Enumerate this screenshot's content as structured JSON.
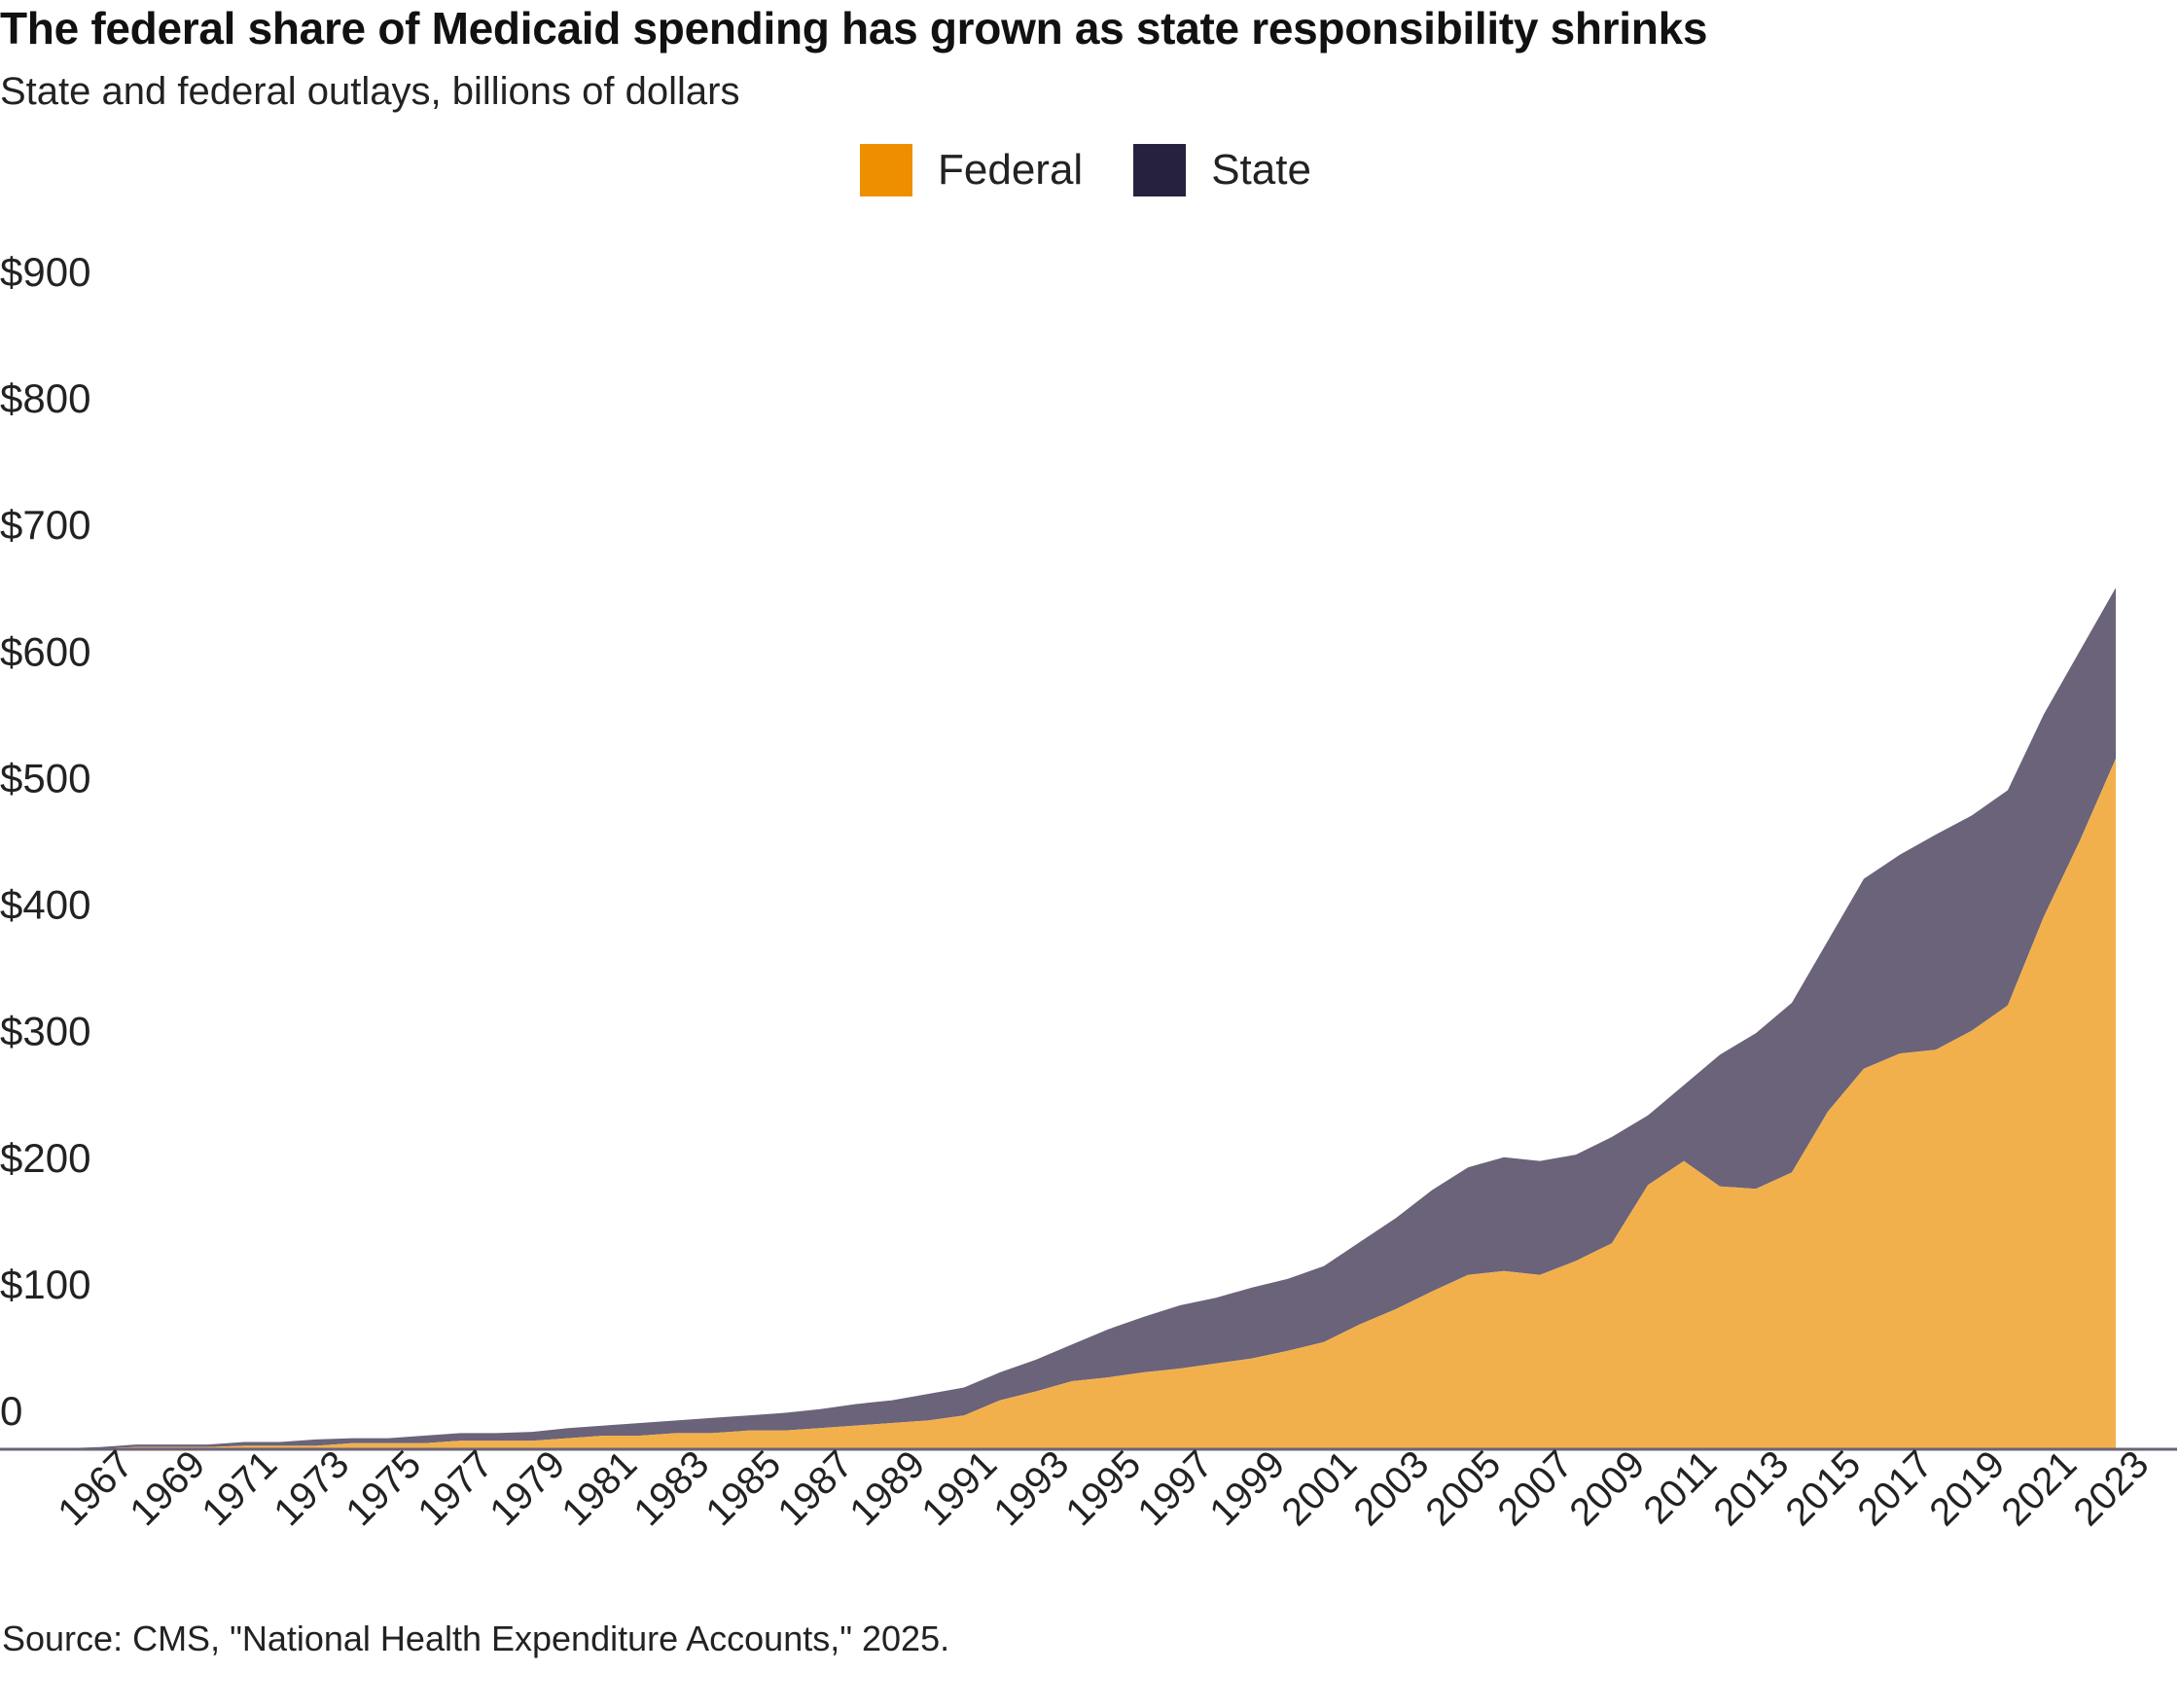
{
  "title": "The federal share of Medicaid spending has grown as state responsibility shrinks",
  "subtitle": "State and federal outlays, billions of dollars",
  "source": "Source: CMS, \"National Health Expenditure Accounts,\" 2025.",
  "colors": {
    "federal_legend": "#EE8F00",
    "state_legend": "#26213C",
    "federal_area": "#F2B04D",
    "state_area": "#6A6379",
    "axis": "#6A6379"
  },
  "legend": [
    {
      "label": "Federal",
      "color": "#EE8F00"
    },
    {
      "label": "State",
      "color": "#26213C"
    }
  ],
  "chart_data": {
    "type": "area",
    "stacked": true,
    "title": "The federal share of Medicaid spending has grown as state responsibility shrinks",
    "subtitle": "State and federal outlays, billions of dollars",
    "ylim": [
      0,
      900
    ],
    "y_ticks": [
      {
        "value": 0,
        "label": "0"
      },
      {
        "value": 100,
        "label": "$100"
      },
      {
        "value": 200,
        "label": "$200"
      },
      {
        "value": 300,
        "label": "$300"
      },
      {
        "value": 400,
        "label": "$400"
      },
      {
        "value": 500,
        "label": "$500"
      },
      {
        "value": 600,
        "label": "$600"
      },
      {
        "value": 700,
        "label": "$700"
      },
      {
        "value": 800,
        "label": "$800"
      },
      {
        "value": 900,
        "label": "$900"
      }
    ],
    "x_tick_labels": [
      "1967",
      "1969",
      "1971",
      "1973",
      "1975",
      "1977",
      "1979",
      "1981",
      "1983",
      "1985",
      "1987",
      "1989",
      "1991",
      "1993",
      "1995",
      "1997",
      "1999",
      "2001",
      "2003",
      "2005",
      "2007",
      "2009",
      "2011",
      "2013",
      "2015",
      "2017",
      "2019",
      "2021",
      "2023"
    ],
    "legend_position": "top-center",
    "grid": false,
    "x": [
      1966,
      1967,
      1968,
      1969,
      1970,
      1971,
      1972,
      1973,
      1974,
      1975,
      1976,
      1977,
      1978,
      1979,
      1980,
      1981,
      1982,
      1983,
      1984,
      1985,
      1986,
      1987,
      1988,
      1989,
      1990,
      1991,
      1992,
      1993,
      1994,
      1995,
      1996,
      1997,
      1998,
      1999,
      2000,
      2001,
      2002,
      2003,
      2004,
      2005,
      2006,
      2007,
      2008,
      2009,
      2010,
      2011,
      2012,
      2013,
      2014,
      2015,
      2016,
      2017,
      2018,
      2019,
      2020,
      2021,
      2022,
      2023
    ],
    "series": [
      {
        "name": "Federal",
        "values": [
          0,
          0,
          1,
          1,
          1,
          2,
          2,
          2,
          4,
          4,
          4,
          6,
          6,
          6,
          8,
          10,
          10,
          12,
          12,
          14,
          14,
          16,
          18,
          20,
          22,
          26,
          38,
          45,
          53,
          56,
          60,
          63,
          67,
          71,
          77,
          84,
          98,
          110,
          124,
          137,
          140,
          137,
          148,
          162,
          208,
          227,
          207,
          205,
          218,
          266,
          300,
          312,
          315,
          330,
          350,
          420,
          480,
          545
        ]
      },
      {
        "name": "State",
        "values": [
          0,
          1,
          2,
          2,
          2,
          3,
          3,
          5,
          4,
          4,
          6,
          6,
          6,
          7,
          8,
          8,
          10,
          10,
          12,
          12,
          14,
          15,
          17,
          18,
          21,
          22,
          22,
          25,
          29,
          38,
          44,
          50,
          52,
          56,
          57,
          60,
          65,
          72,
          80,
          85,
          90,
          90,
          84,
          84,
          55,
          60,
          104,
          123,
          134,
          135,
          150,
          157,
          170,
          170,
          170,
          160,
          150,
          135
        ]
      }
    ]
  }
}
